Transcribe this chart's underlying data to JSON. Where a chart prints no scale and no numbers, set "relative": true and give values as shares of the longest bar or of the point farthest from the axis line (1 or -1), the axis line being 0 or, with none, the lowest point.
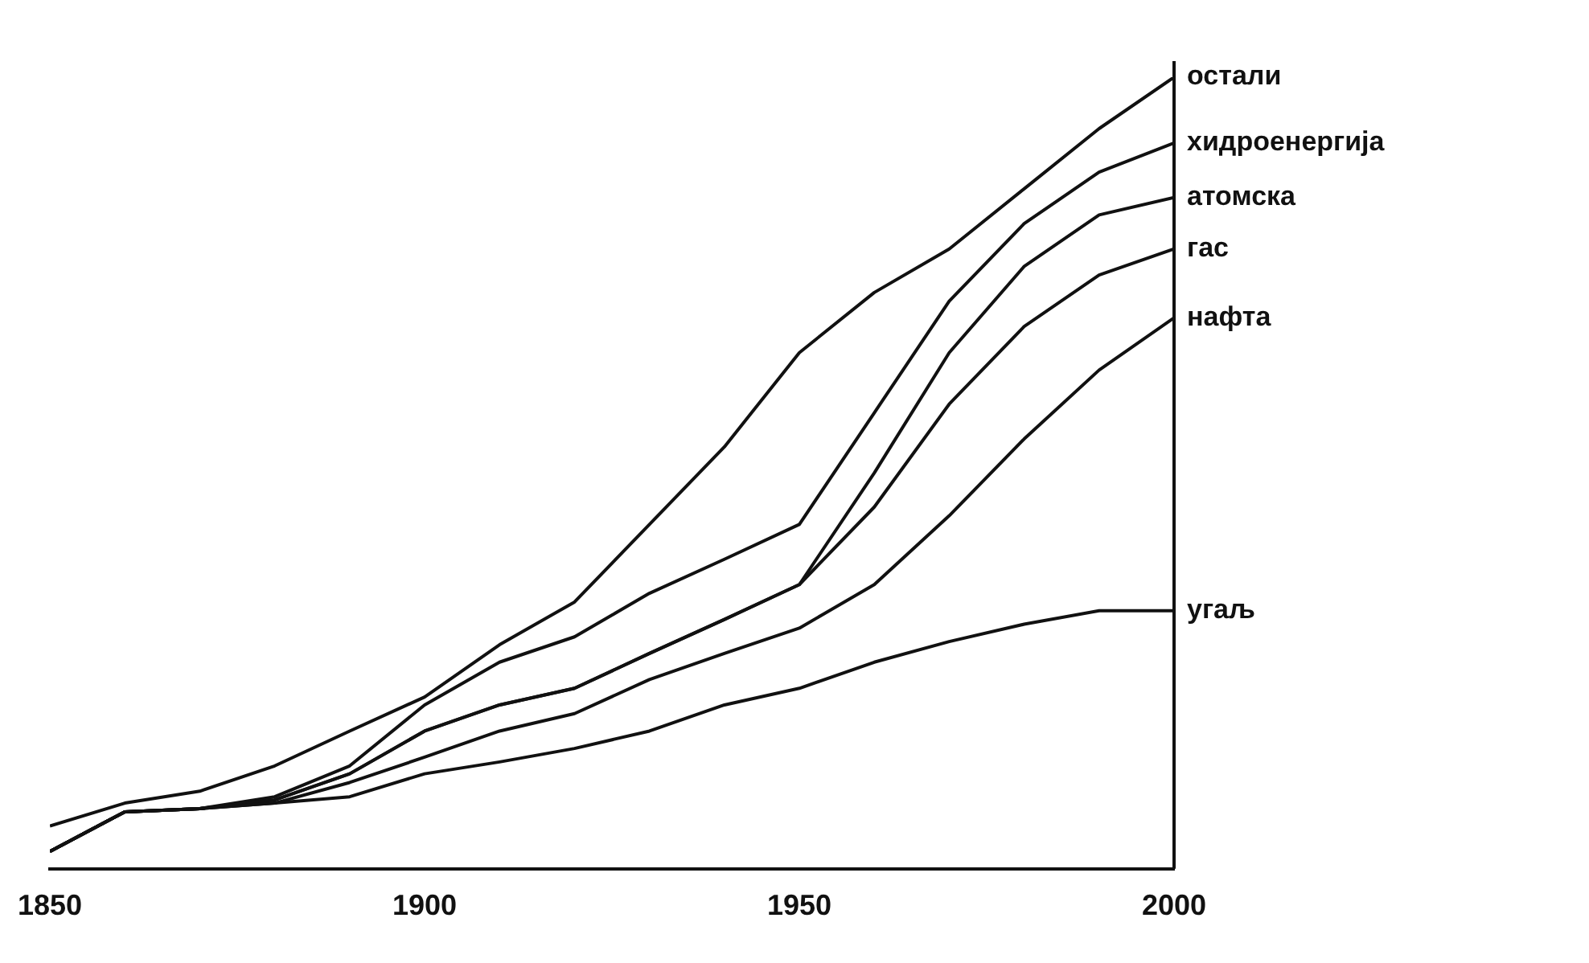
{
  "chart_data": {
    "type": "line",
    "relative": true,
    "x": [
      1850,
      1860,
      1870,
      1880,
      1890,
      1900,
      1910,
      1920,
      1930,
      1940,
      1950,
      1960,
      1970,
      1980,
      1990,
      2000
    ],
    "xlim": [
      1850,
      2000
    ],
    "xticks": [
      1850,
      1900,
      1950,
      2000
    ],
    "series": [
      {
        "name": "угаљ",
        "color": "#111111",
        "values": [
          0.022,
          0.072,
          0.076,
          0.083,
          0.091,
          0.12,
          0.135,
          0.152,
          0.174,
          0.207,
          0.228,
          0.261,
          0.287,
          0.309,
          0.326,
          0.326
        ]
      },
      {
        "name": "нафта",
        "color": "#111111",
        "values": [
          0.022,
          0.072,
          0.076,
          0.083,
          0.109,
          0.141,
          0.174,
          0.196,
          0.239,
          0.272,
          0.304,
          0.359,
          0.446,
          0.543,
          0.63,
          0.696
        ]
      },
      {
        "name": "гас",
        "color": "#111111",
        "values": [
          0.022,
          0.072,
          0.076,
          0.087,
          0.12,
          0.174,
          0.207,
          0.228,
          0.272,
          0.315,
          0.359,
          0.457,
          0.587,
          0.685,
          0.75,
          0.783
        ]
      },
      {
        "name": "атомска",
        "color": "#111111",
        "values": [
          0.022,
          0.072,
          0.076,
          0.087,
          0.12,
          0.174,
          0.207,
          0.228,
          0.272,
          0.315,
          0.359,
          0.5,
          0.652,
          0.761,
          0.826,
          0.848
        ]
      },
      {
        "name": "хидроенергија",
        "color": "#111111",
        "values": [
          0.022,
          0.072,
          0.076,
          0.091,
          0.13,
          0.207,
          0.261,
          0.293,
          0.348,
          0.391,
          0.435,
          0.576,
          0.717,
          0.815,
          0.88,
          0.917
        ]
      },
      {
        "name": "остали",
        "color": "#111111",
        "values": [
          0.054,
          0.083,
          0.098,
          0.13,
          0.174,
          0.217,
          0.283,
          0.337,
          0.435,
          0.533,
          0.652,
          0.728,
          0.783,
          0.859,
          0.935,
          1
        ]
      }
    ]
  }
}
